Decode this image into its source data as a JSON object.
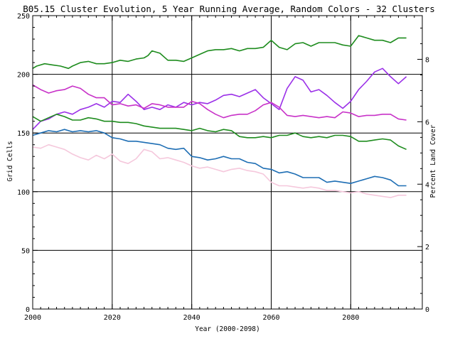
{
  "chart_data": {
    "type": "line",
    "title": "B05.15 Cluster Evolution, 5 Year Running Average, Random Colors - 32 Clusters",
    "xlabel": "Year (2000-2098)",
    "ylabel": "Grid Cells",
    "ylabel_right": "Percent Land Cover",
    "xlim": [
      2000,
      2098
    ],
    "ylim": [
      0,
      250
    ],
    "ylim_right": [
      0,
      9.4
    ],
    "x_ticks": [
      "2000",
      "2020",
      "2040",
      "2060",
      "2080"
    ],
    "y_ticks": [
      "0",
      "50",
      "100",
      "150",
      "200",
      "250"
    ],
    "y_right_ticks": [
      "0",
      "2",
      "4",
      "6",
      "8"
    ],
    "grid": true,
    "series": [
      {
        "color": "#1e8c1e",
        "x": [
          2000,
          2001,
          2003,
          2005,
          2007,
          2009,
          2010,
          2012,
          2014,
          2016,
          2018,
          2020,
          2022,
          2024,
          2026,
          2028,
          2029,
          2030,
          2032,
          2034,
          2036,
          2038,
          2040,
          2042,
          2044,
          2046,
          2048,
          2050,
          2052,
          2054,
          2056,
          2058,
          2060,
          2062,
          2064,
          2066,
          2068,
          2070,
          2072,
          2074,
          2076,
          2078,
          2080,
          2082,
          2084,
          2086,
          2088,
          2090,
          2092,
          2094
        ],
        "values": [
          205,
          207,
          209,
          208,
          207,
          205,
          207,
          210,
          211,
          209,
          209,
          210,
          212,
          211,
          213,
          214,
          216,
          220,
          218,
          212,
          212,
          211,
          214,
          217,
          220,
          221,
          221,
          222,
          220,
          222,
          222,
          223,
          229,
          223,
          221,
          226,
          227,
          224,
          227,
          227,
          227,
          225,
          224,
          233,
          231,
          229,
          229,
          227,
          231,
          231
        ]
      },
      {
        "color": "#9b30e8",
        "x": [
          2000,
          2002,
          2004,
          2006,
          2008,
          2010,
          2012,
          2014,
          2016,
          2018,
          2020,
          2022,
          2024,
          2026,
          2028,
          2030,
          2032,
          2034,
          2036,
          2038,
          2040,
          2042,
          2044,
          2046,
          2048,
          2050,
          2052,
          2054,
          2056,
          2058,
          2060,
          2062,
          2064,
          2066,
          2068,
          2070,
          2072,
          2074,
          2076,
          2078,
          2080,
          2082,
          2084,
          2086,
          2088,
          2090,
          2092,
          2094
        ],
        "values": [
          153,
          160,
          162,
          166,
          168,
          166,
          170,
          172,
          175,
          172,
          177,
          176,
          183,
          177,
          170,
          172,
          170,
          174,
          172,
          176,
          174,
          176,
          175,
          178,
          182,
          183,
          181,
          184,
          187,
          180,
          175,
          170,
          188,
          198,
          195,
          185,
          187,
          182,
          176,
          171,
          177,
          187,
          194,
          202,
          205,
          198,
          192,
          198
        ]
      },
      {
        "color": "#c832c8",
        "x": [
          2000,
          2002,
          2004,
          2006,
          2008,
          2010,
          2012,
          2014,
          2016,
          2018,
          2020,
          2022,
          2024,
          2026,
          2028,
          2030,
          2032,
          2034,
          2036,
          2038,
          2040,
          2042,
          2044,
          2046,
          2048,
          2050,
          2052,
          2054,
          2056,
          2058,
          2060,
          2062,
          2064,
          2066,
          2068,
          2070,
          2072,
          2074,
          2076,
          2078,
          2080,
          2082,
          2084,
          2086,
          2088,
          2090,
          2092,
          2094
        ],
        "values": [
          191,
          187,
          184,
          186,
          187,
          190,
          188,
          183,
          180,
          180,
          174,
          175,
          173,
          174,
          171,
          175,
          174,
          172,
          172,
          172,
          177,
          175,
          170,
          166,
          163,
          165,
          166,
          166,
          169,
          174,
          176,
          172,
          165,
          164,
          165,
          164,
          163,
          164,
          163,
          168,
          167,
          164,
          165,
          165,
          166,
          166,
          162,
          161
        ]
      },
      {
        "color": "#1e8c1e",
        "x": [
          2000,
          2002,
          2004,
          2006,
          2008,
          2010,
          2012,
          2014,
          2016,
          2018,
          2020,
          2022,
          2024,
          2026,
          2028,
          2030,
          2032,
          2034,
          2036,
          2038,
          2040,
          2042,
          2044,
          2046,
          2048,
          2050,
          2052,
          2054,
          2056,
          2058,
          2060,
          2062,
          2064,
          2066,
          2068,
          2070,
          2072,
          2074,
          2076,
          2078,
          2080,
          2082,
          2084,
          2086,
          2088,
          2090,
          2092,
          2094
        ],
        "values": [
          164,
          160,
          163,
          166,
          164,
          161,
          161,
          163,
          162,
          160,
          160,
          159,
          159,
          158,
          156,
          155,
          154,
          154,
          154,
          153,
          152,
          154,
          152,
          151,
          153,
          152,
          147,
          146,
          146,
          147,
          146,
          148,
          148,
          150,
          147,
          146,
          147,
          146,
          148,
          148,
          147,
          143,
          143,
          144,
          145,
          144,
          139,
          136
        ]
      },
      {
        "color": "#1e6eb4",
        "x": [
          2000,
          2002,
          2004,
          2006,
          2008,
          2010,
          2012,
          2014,
          2016,
          2018,
          2020,
          2022,
          2024,
          2026,
          2028,
          2030,
          2032,
          2034,
          2036,
          2038,
          2040,
          2042,
          2044,
          2046,
          2048,
          2050,
          2052,
          2054,
          2056,
          2058,
          2060,
          2062,
          2064,
          2066,
          2068,
          2070,
          2072,
          2074,
          2076,
          2078,
          2080,
          2082,
          2084,
          2086,
          2088,
          2090,
          2092,
          2094
        ],
        "values": [
          148,
          150,
          152,
          151,
          153,
          151,
          152,
          151,
          152,
          150,
          146,
          145,
          143,
          143,
          142,
          141,
          140,
          137,
          136,
          137,
          130,
          129,
          127,
          128,
          130,
          128,
          128,
          125,
          124,
          120,
          119,
          116,
          117,
          115,
          112,
          112,
          112,
          108,
          109,
          108,
          107,
          109,
          111,
          113,
          112,
          110,
          105,
          105
        ]
      },
      {
        "color": "#f5c8dc",
        "x": [
          2000,
          2002,
          2004,
          2006,
          2008,
          2010,
          2012,
          2014,
          2016,
          2018,
          2020,
          2022,
          2024,
          2026,
          2028,
          2030,
          2032,
          2034,
          2036,
          2038,
          2040,
          2042,
          2044,
          2046,
          2048,
          2050,
          2052,
          2054,
          2056,
          2058,
          2060,
          2062,
          2064,
          2066,
          2068,
          2070,
          2072,
          2074,
          2076,
          2078,
          2080,
          2082,
          2084,
          2086,
          2088,
          2090,
          2092,
          2094
        ],
        "values": [
          138,
          137,
          140,
          138,
          136,
          132,
          129,
          127,
          131,
          128,
          132,
          126,
          124,
          128,
          136,
          134,
          128,
          129,
          127,
          125,
          122,
          120,
          121,
          119,
          117,
          119,
          120,
          118,
          117,
          115,
          108,
          105,
          105,
          104,
          103,
          104,
          103,
          101,
          101,
          100,
          99,
          100,
          98,
          97,
          96,
          95,
          97,
          97
        ]
      }
    ]
  }
}
